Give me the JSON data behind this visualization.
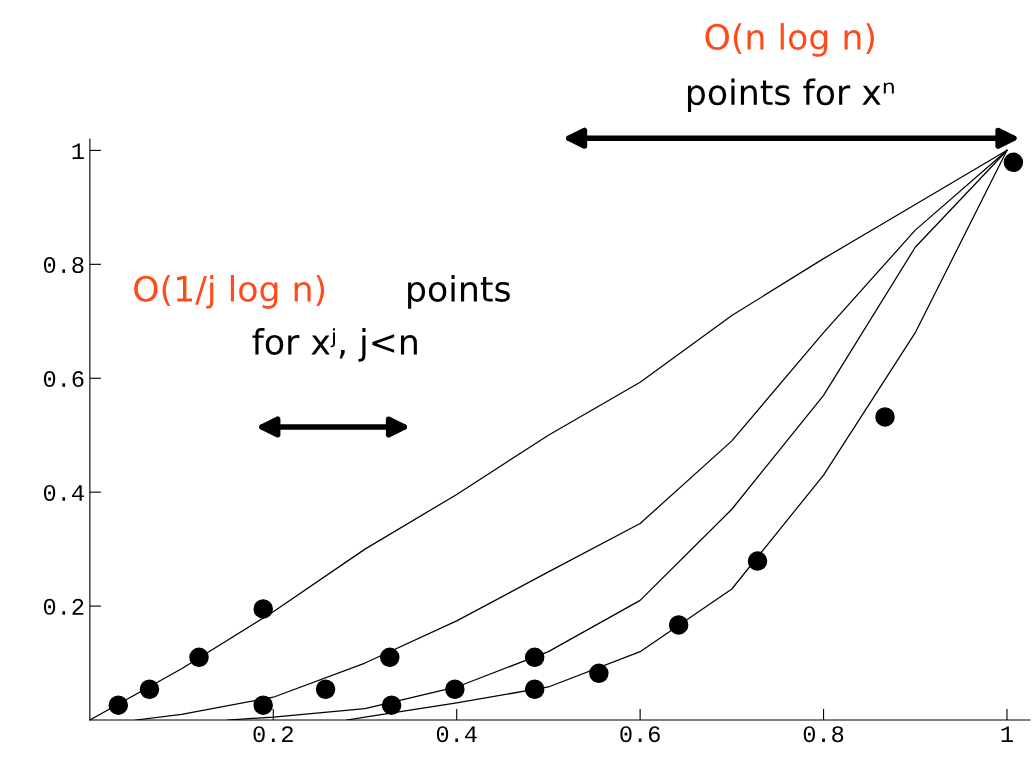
{
  "chart_data": {
    "type": "line",
    "series": [
      {
        "color": "#000000",
        "x": [
          0,
          0.1,
          0.2,
          0.3,
          0.4,
          0.5,
          0.6,
          0.7,
          0.8,
          0.9,
          1
        ],
        "values": [
          0,
          0.09,
          0.19,
          0.3,
          0.396,
          0.5,
          0.593,
          0.71,
          0.81,
          0.905,
          1
        ]
      },
      {
        "color": "#000000",
        "x": [
          0.05,
          0.1,
          0.2,
          0.3,
          0.4,
          0.5,
          0.6,
          0.7,
          0.8,
          0.9,
          1
        ],
        "values": [
          0,
          0.01,
          0.04,
          0.1,
          0.174,
          0.26,
          0.345,
          0.49,
          0.68,
          0.86,
          1
        ]
      },
      {
        "color": "#000000",
        "x": [
          0.15,
          0.2,
          0.3,
          0.4,
          0.5,
          0.6,
          0.7,
          0.8,
          0.9,
          1
        ],
        "values": [
          0,
          0.005,
          0.02,
          0.058,
          0.12,
          0.21,
          0.37,
          0.57,
          0.83,
          1
        ]
      },
      {
        "color": "#000000",
        "x": [
          0.28,
          0.3,
          0.4,
          0.5,
          0.6,
          0.7,
          0.8,
          0.9,
          1
        ],
        "values": [
          0,
          0.005,
          0.03,
          0.058,
          0.12,
          0.23,
          0.43,
          0.68,
          1
        ]
      },
      {
        "type": "scatter",
        "color": "#000000",
        "x": [
          0.031,
          0.065,
          0.119,
          0.189,
          0.189,
          0.257,
          0.327,
          0.329,
          0.398,
          0.485,
          0.485,
          0.555,
          0.642,
          0.728,
          0.867,
          1.007
        ],
        "values": [
          0.026,
          0.054,
          0.11,
          0.195,
          0.026,
          0.054,
          0.11,
          0.026,
          0.054,
          0.11,
          0.054,
          0.082,
          0.167,
          0.279,
          0.532,
          0.979
        ]
      }
    ],
    "xlim": [
      0,
      1.025
    ],
    "ylim": [
      0,
      1.02
    ],
    "xticks": [
      0.2,
      0.4,
      0.6,
      0.8,
      1
    ],
    "yticks": [
      0.2,
      0.4,
      0.6,
      0.8,
      1
    ],
    "grid": false,
    "legend": false,
    "annotations": [
      "O(n log n)",
      "points for xⁿ",
      "O(1/j log n)",
      "points",
      "for xʲ, j<n"
    ]
  }
}
